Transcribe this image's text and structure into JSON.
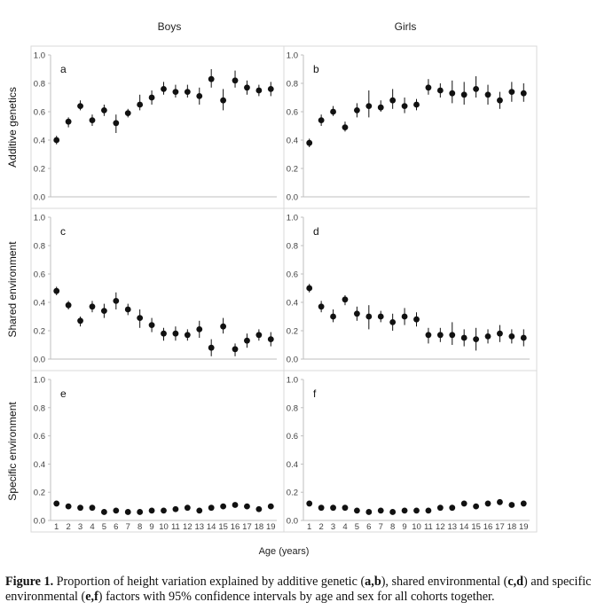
{
  "chart_data": {
    "type": "scatter",
    "columns": [
      "Boys",
      "Girls"
    ],
    "panels": [
      {
        "letter": "a",
        "row": 0,
        "col": 0,
        "ylabel": "Additive genetics",
        "ylim": [
          0.0,
          1.0
        ],
        "yticks": [
          "0.0",
          "0.2",
          "0.4",
          "0.6",
          "0.8",
          "1.0"
        ],
        "values": [
          0.4,
          0.53,
          0.64,
          0.54,
          0.61,
          0.52,
          0.59,
          0.65,
          0.7,
          0.76,
          0.74,
          0.74,
          0.71,
          0.83,
          0.68,
          0.82,
          0.77,
          0.75,
          0.76
        ],
        "ci_low": [
          0.37,
          0.49,
          0.61,
          0.5,
          0.57,
          0.45,
          0.56,
          0.61,
          0.65,
          0.72,
          0.7,
          0.7,
          0.65,
          0.77,
          0.61,
          0.77,
          0.72,
          0.71,
          0.71
        ],
        "ci_high": [
          0.43,
          0.56,
          0.68,
          0.58,
          0.65,
          0.58,
          0.62,
          0.72,
          0.75,
          0.81,
          0.79,
          0.79,
          0.77,
          0.9,
          0.76,
          0.89,
          0.82,
          0.79,
          0.81
        ]
      },
      {
        "letter": "b",
        "row": 0,
        "col": 1,
        "ylabel": "Additive genetics",
        "ylim": [
          0.0,
          1.0
        ],
        "yticks": [
          "0.0",
          "0.2",
          "0.4",
          "0.6",
          "0.8",
          "1.0"
        ],
        "values": [
          0.38,
          0.54,
          0.6,
          0.49,
          0.61,
          0.64,
          0.63,
          0.68,
          0.64,
          0.65,
          0.77,
          0.75,
          0.73,
          0.72,
          0.76,
          0.72,
          0.68,
          0.74,
          0.73
        ],
        "ci_low": [
          0.35,
          0.5,
          0.57,
          0.46,
          0.56,
          0.56,
          0.6,
          0.62,
          0.59,
          0.61,
          0.72,
          0.7,
          0.66,
          0.65,
          0.7,
          0.65,
          0.62,
          0.67,
          0.67
        ],
        "ci_high": [
          0.41,
          0.58,
          0.64,
          0.53,
          0.66,
          0.75,
          0.68,
          0.76,
          0.7,
          0.69,
          0.83,
          0.8,
          0.82,
          0.81,
          0.85,
          0.79,
          0.74,
          0.81,
          0.8
        ]
      },
      {
        "letter": "c",
        "row": 1,
        "col": 0,
        "ylabel": "Shared environment",
        "ylim": [
          0.0,
          1.0
        ],
        "yticks": [
          "0.0",
          "0.2",
          "0.4",
          "0.6",
          "0.8",
          "1.0"
        ],
        "values": [
          0.48,
          0.38,
          0.27,
          0.37,
          0.34,
          0.41,
          0.35,
          0.29,
          0.24,
          0.18,
          0.18,
          0.17,
          0.21,
          0.08,
          0.23,
          0.07,
          0.13,
          0.17,
          0.14
        ],
        "ci_low": [
          0.45,
          0.35,
          0.23,
          0.33,
          0.29,
          0.35,
          0.31,
          0.22,
          0.19,
          0.13,
          0.13,
          0.13,
          0.15,
          0.02,
          0.18,
          0.02,
          0.08,
          0.13,
          0.09
        ],
        "ci_high": [
          0.51,
          0.41,
          0.3,
          0.41,
          0.39,
          0.47,
          0.39,
          0.35,
          0.29,
          0.22,
          0.23,
          0.21,
          0.27,
          0.14,
          0.29,
          0.11,
          0.18,
          0.21,
          0.19
        ]
      },
      {
        "letter": "d",
        "row": 1,
        "col": 1,
        "ylabel": "Shared environment",
        "ylim": [
          0.0,
          1.0
        ],
        "yticks": [
          "0.0",
          "0.2",
          "0.4",
          "0.6",
          "0.8",
          "1.0"
        ],
        "values": [
          0.5,
          0.37,
          0.3,
          0.42,
          0.32,
          0.3,
          0.3,
          0.26,
          0.3,
          0.28,
          0.17,
          0.17,
          0.17,
          0.15,
          0.14,
          0.16,
          0.18,
          0.16,
          0.15
        ],
        "ci_low": [
          0.47,
          0.33,
          0.26,
          0.38,
          0.27,
          0.21,
          0.26,
          0.2,
          0.24,
          0.23,
          0.11,
          0.12,
          0.1,
          0.09,
          0.06,
          0.11,
          0.12,
          0.11,
          0.09
        ],
        "ci_high": [
          0.53,
          0.41,
          0.35,
          0.45,
          0.37,
          0.38,
          0.34,
          0.32,
          0.36,
          0.33,
          0.22,
          0.22,
          0.26,
          0.21,
          0.22,
          0.21,
          0.24,
          0.21,
          0.21
        ]
      },
      {
        "letter": "e",
        "row": 2,
        "col": 0,
        "ylabel": "Specific environment",
        "ylim": [
          0.0,
          1.0
        ],
        "yticks": [
          "0.0",
          "0.2",
          "0.4",
          "0.6",
          "0.8",
          "1.0"
        ],
        "values": [
          0.12,
          0.1,
          0.09,
          0.09,
          0.06,
          0.07,
          0.06,
          0.06,
          0.07,
          0.07,
          0.08,
          0.09,
          0.07,
          0.09,
          0.1,
          0.11,
          0.1,
          0.08,
          0.1
        ],
        "ci_low": null,
        "ci_high": null
      },
      {
        "letter": "f",
        "row": 2,
        "col": 1,
        "ylabel": "Specific environment",
        "ylim": [
          0.0,
          1.0
        ],
        "yticks": [
          "0.0",
          "0.2",
          "0.4",
          "0.6",
          "0.8",
          "1.0"
        ],
        "values": [
          0.12,
          0.09,
          0.09,
          0.09,
          0.07,
          0.06,
          0.07,
          0.06,
          0.07,
          0.07,
          0.07,
          0.09,
          0.09,
          0.12,
          0.1,
          0.12,
          0.13,
          0.11,
          0.12
        ],
        "ci_low": null,
        "ci_high": null
      }
    ],
    "x": [
      "1",
      "2",
      "3",
      "4",
      "5",
      "6",
      "7",
      "8",
      "9",
      "10",
      "11",
      "12",
      "13",
      "14",
      "15",
      "16",
      "17",
      "18",
      "19"
    ],
    "xlabel": "Age (years)",
    "colors": {
      "points": "#111111",
      "axis": "#bfbfbf",
      "frame": "#d9d9d9",
      "tick_text": "#404040"
    }
  },
  "caption": {
    "label": "Figure 1.",
    "text_1": "Proportion of height variation explained by additive genetic (",
    "bold_ab": "a,b",
    "text_2": "), shared environmental (",
    "bold_cd": "c,d",
    "text_3": ") and specific environmental (",
    "bold_ef": "e,f",
    "text_4": ") factors with 95% confidence intervals by age and sex for all cohorts together."
  }
}
